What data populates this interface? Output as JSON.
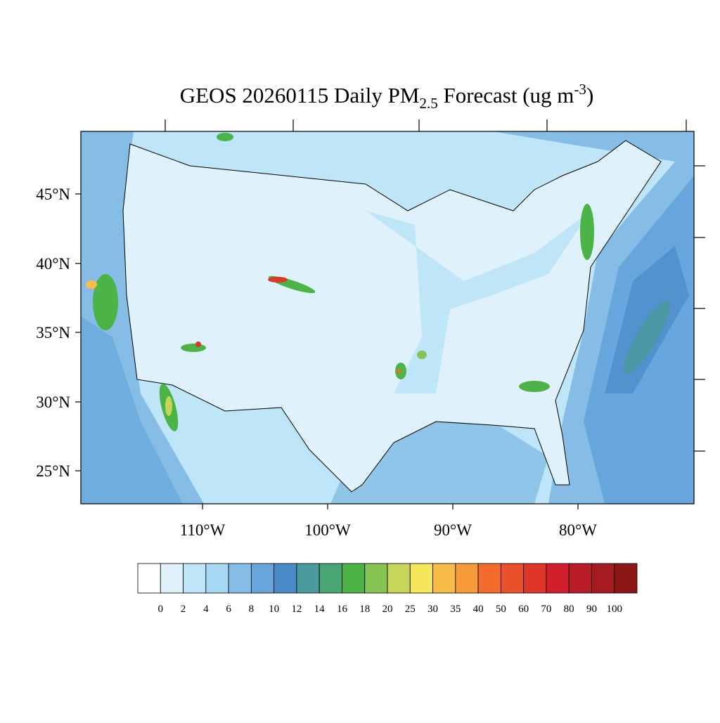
{
  "header": {
    "title": [
      "GEOS 20260115 Daily PM",
      "2.5",
      " Forecast (ug m",
      "-3",
      ")"
    ]
  },
  "map": {
    "lat_labels": [
      "45°N",
      "40°N",
      "35°N",
      "30°N",
      "25°N"
    ],
    "lon_labels": [
      "110°W",
      "100°W",
      "90°W",
      "80°W"
    ]
  },
  "colorbar": {
    "labels": [
      "0",
      "2",
      "4",
      "6",
      "8",
      "10",
      "12",
      "14",
      "16",
      "18",
      "20",
      "25",
      "30",
      "35",
      "40",
      "50",
      "60",
      "70",
      "80",
      "90",
      "100"
    ],
    "colors": [
      "#ffffff",
      "#dff2fb",
      "#bfe6f8",
      "#a6d8f4",
      "#85bde6",
      "#66a6dc",
      "#4a8ac8",
      "#4a9a9e",
      "#49a574",
      "#4cb447",
      "#85c453",
      "#c5d65b",
      "#f6e65a",
      "#f8bd48",
      "#f69a3a",
      "#f36c2e",
      "#e9502c",
      "#dd3628",
      "#d01f2a",
      "#b81c25",
      "#a51a1e",
      "#8c1717"
    ]
  }
}
